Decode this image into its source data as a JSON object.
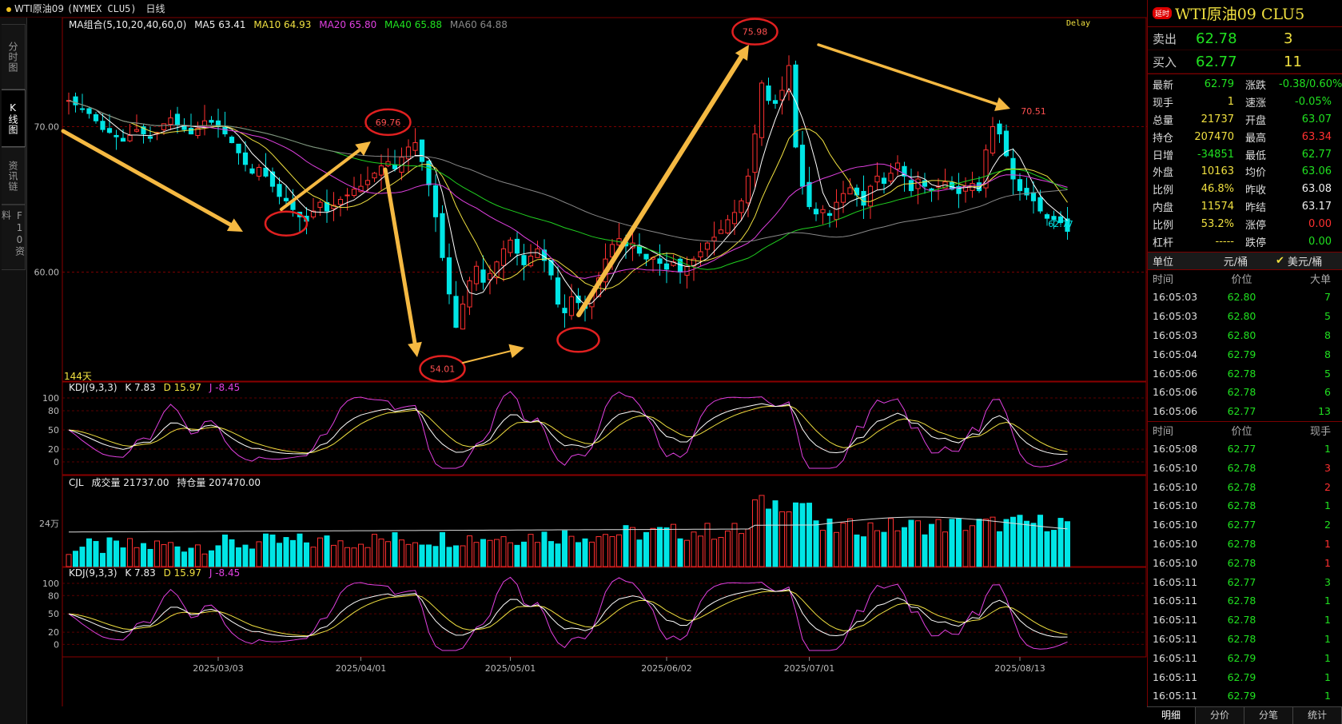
{
  "topbar": {
    "symbol": "WTI原油09",
    "code": "(NYMEX CLU5)",
    "period": "日线"
  },
  "left_tabs": [
    "分时图",
    "K线图",
    "资讯链",
    "F10资料"
  ],
  "legend": {
    "ma_label": "MA组合(5,10,20,40,60,0)",
    "ma5": "MA5 63.41",
    "ma10": "MA10 64.93",
    "ma20": "MA20 65.80",
    "ma40": "MA40 65.88",
    "ma60": "MA60 64.88",
    "delay": "Delay",
    "kdj_label": "KDJ(9,3,3)",
    "kdj_k": "K 7.83",
    "kdj_d": "D 15.97",
    "kdj_j": "J -8.45",
    "cjl_label": "CJL",
    "volume": "成交量 21737.00",
    "open_interest": "持仓量 207470.00",
    "days": "144天"
  },
  "colors": {
    "up": "#ff3030",
    "down": "#00e5e5",
    "ma5": "#ffffff",
    "ma10": "#f0e040",
    "ma20": "#e040e0",
    "ma40": "#20d020",
    "ma60": "#888888",
    "arrow": "#f5b942",
    "circle": "#e02020"
  },
  "chart_data": {
    "type": "candlestick",
    "price_axis_ticks": [
      "70.00",
      "60.00"
    ],
    "kdj_axis_ticks": [
      "100",
      "80",
      "50",
      "20",
      "0"
    ],
    "volume_axis_ticks": [
      "24万"
    ],
    "date_ticks": [
      "2025/03/03",
      "2025/04/01",
      "2025/05/01",
      "2025/06/02",
      "2025/07/01",
      "2025/08/13"
    ],
    "annotations": [
      "69.76",
      "54.01",
      "75.98",
      "70.51",
      "62.77"
    ],
    "close_series": [
      71.8,
      71.5,
      71.2,
      70.9,
      70.4,
      69.8,
      69.6,
      69.3,
      69.0,
      69.4,
      69.8,
      69.5,
      69.2,
      69.6,
      70.2,
      70.6,
      70.1,
      69.8,
      69.5,
      69.9,
      70.4,
      70.3,
      70.0,
      69.5,
      68.9,
      68.2,
      67.4,
      66.8,
      67.2,
      66.6,
      65.9,
      65.2,
      64.9,
      64.3,
      63.8,
      63.5,
      64.2,
      64.8,
      64.2,
      64.6,
      65.0,
      65.3,
      65.7,
      65.9,
      66.3,
      66.8,
      67.3,
      67.6,
      67.1,
      67.9,
      68.6,
      68.9,
      67.6,
      66.0,
      63.8,
      61.0,
      58.5,
      56.2,
      57.8,
      59.4,
      60.4,
      59.3,
      59.9,
      60.7,
      61.6,
      62.2,
      61.3,
      60.5,
      61.1,
      61.6,
      60.8,
      59.8,
      57.8,
      57.2,
      58.3,
      57.9,
      57.5,
      58.5,
      59.6,
      60.9,
      61.9,
      62.3,
      61.8,
      62.0,
      61.3,
      60.9,
      61.0,
      60.6,
      60.2,
      60.7,
      60.0,
      60.4,
      60.9,
      61.4,
      62.0,
      62.4,
      62.9,
      63.6,
      64.1,
      64.9,
      66.6,
      69.5,
      73.0,
      71.8,
      71.6,
      72.5,
      74.2,
      68.6,
      65.9,
      64.5,
      64.0,
      64.3,
      63.9,
      64.8,
      65.4,
      65.8,
      65.3,
      64.6,
      65.9,
      66.6,
      66.1,
      66.8,
      67.5,
      66.6,
      65.6,
      66.4,
      65.9,
      65.6,
      65.9,
      66.2,
      65.7,
      65.4,
      65.9,
      66.1,
      65.6,
      68.4,
      70.0,
      69.5,
      68.0,
      66.4,
      65.6,
      65.3,
      64.9,
      64.2,
      63.7,
      63.6,
      63.4,
      62.8
    ]
  },
  "right": {
    "delay_badge": "延时",
    "title": "WTI原油09  CLU5",
    "sell": {
      "label": "卖出",
      "price": "62.78",
      "qty": "3"
    },
    "buy": {
      "label": "买入",
      "price": "62.77",
      "qty": "11"
    },
    "quote": [
      [
        "最新",
        "62.79",
        "涨跌",
        "-0.38/0.60%"
      ],
      [
        "现手",
        "1",
        "速涨",
        "-0.05%"
      ],
      [
        "总量",
        "21737",
        "开盘",
        "63.07"
      ],
      [
        "持仓",
        "207470",
        "最高",
        "63.34"
      ],
      [
        "日增",
        "-34851",
        "最低",
        "62.77"
      ],
      [
        "外盘",
        "10163",
        "均价",
        "63.06"
      ],
      [
        "比例",
        "46.8%",
        "昨收",
        "63.08"
      ],
      [
        "内盘",
        "11574",
        "昨结",
        "63.17"
      ],
      [
        "比例",
        "53.2%",
        "涨停",
        "0.00"
      ],
      [
        "杠杆",
        "-----",
        "跌停",
        "0.00"
      ]
    ],
    "unit": {
      "label": "单位",
      "opt1": "元/桶",
      "opt2": "美元/桶"
    },
    "table1_head": [
      "时间",
      "价位",
      "大单"
    ],
    "table1": [
      [
        "16:05:03",
        "62.80",
        "7"
      ],
      [
        "16:05:03",
        "62.80",
        "5"
      ],
      [
        "16:05:03",
        "62.80",
        "8"
      ],
      [
        "16:05:04",
        "62.79",
        "8"
      ],
      [
        "16:05:06",
        "62.78",
        "5"
      ],
      [
        "16:05:06",
        "62.78",
        "6"
      ],
      [
        "16:05:06",
        "62.77",
        "13"
      ]
    ],
    "table2_head": [
      "时间",
      "价位",
      "现手"
    ],
    "table2": [
      [
        "16:05:08",
        "62.77",
        "1"
      ],
      [
        "16:05:10",
        "62.78",
        "3"
      ],
      [
        "16:05:10",
        "62.78",
        "2"
      ],
      [
        "16:05:10",
        "62.78",
        "1"
      ],
      [
        "16:05:10",
        "62.77",
        "2"
      ],
      [
        "16:05:10",
        "62.78",
        "1"
      ],
      [
        "16:05:10",
        "62.78",
        "1"
      ],
      [
        "16:05:11",
        "62.77",
        "3"
      ],
      [
        "16:05:11",
        "62.78",
        "1"
      ],
      [
        "16:05:11",
        "62.78",
        "1"
      ],
      [
        "16:05:11",
        "62.78",
        "1"
      ],
      [
        "16:05:11",
        "62.79",
        "1"
      ],
      [
        "16:05:11",
        "62.79",
        "1"
      ],
      [
        "16:05:11",
        "62.79",
        "1"
      ]
    ],
    "bottom_tabs": [
      "明细",
      "分价",
      "分笔",
      "统计"
    ]
  }
}
